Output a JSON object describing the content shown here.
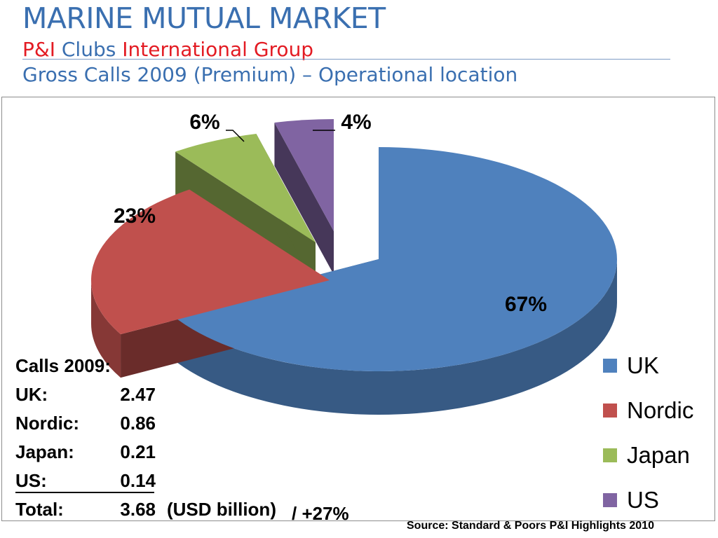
{
  "header": {
    "title": "MARINE MUTUAL MARKET",
    "subtitle_part1": "P&I",
    "subtitle_part2": " Clubs ",
    "subtitle_part3": "International Group",
    "subtitle2": "Gross Calls 2009 (Premium) – Operational location"
  },
  "colors": {
    "uk": "#4f81bd",
    "nordic": "#c0504d",
    "japan": "#9bbb59",
    "us": "#8064a2",
    "title": "#3a6fb0",
    "accent_red": "#e31b23"
  },
  "chart_data": {
    "type": "pie",
    "categories": [
      "UK",
      "Nordic",
      "Japan",
      "US"
    ],
    "values": [
      67,
      23,
      6,
      4
    ],
    "labels": [
      "67%",
      "23%",
      "6%",
      "4%"
    ],
    "legend_position": "right"
  },
  "legend": [
    {
      "label": "UK"
    },
    {
      "label": "Nordic"
    },
    {
      "label": "Japan"
    },
    {
      "label": "US"
    }
  ],
  "calls": {
    "heading": "Calls 2009:",
    "rows": [
      {
        "label": "UK:",
        "value": "2.47"
      },
      {
        "label": "Nordic:",
        "value": "0.86"
      },
      {
        "label": "Japan:",
        "value": "0.21"
      },
      {
        "label": "US:",
        "value": "0.14"
      }
    ],
    "total_label": "Total:",
    "total_value": "3.68",
    "unit": "(USD billion)",
    "growth": "/ +27%"
  },
  "source": "Source: Standard & Poors P&I Highlights 2010"
}
